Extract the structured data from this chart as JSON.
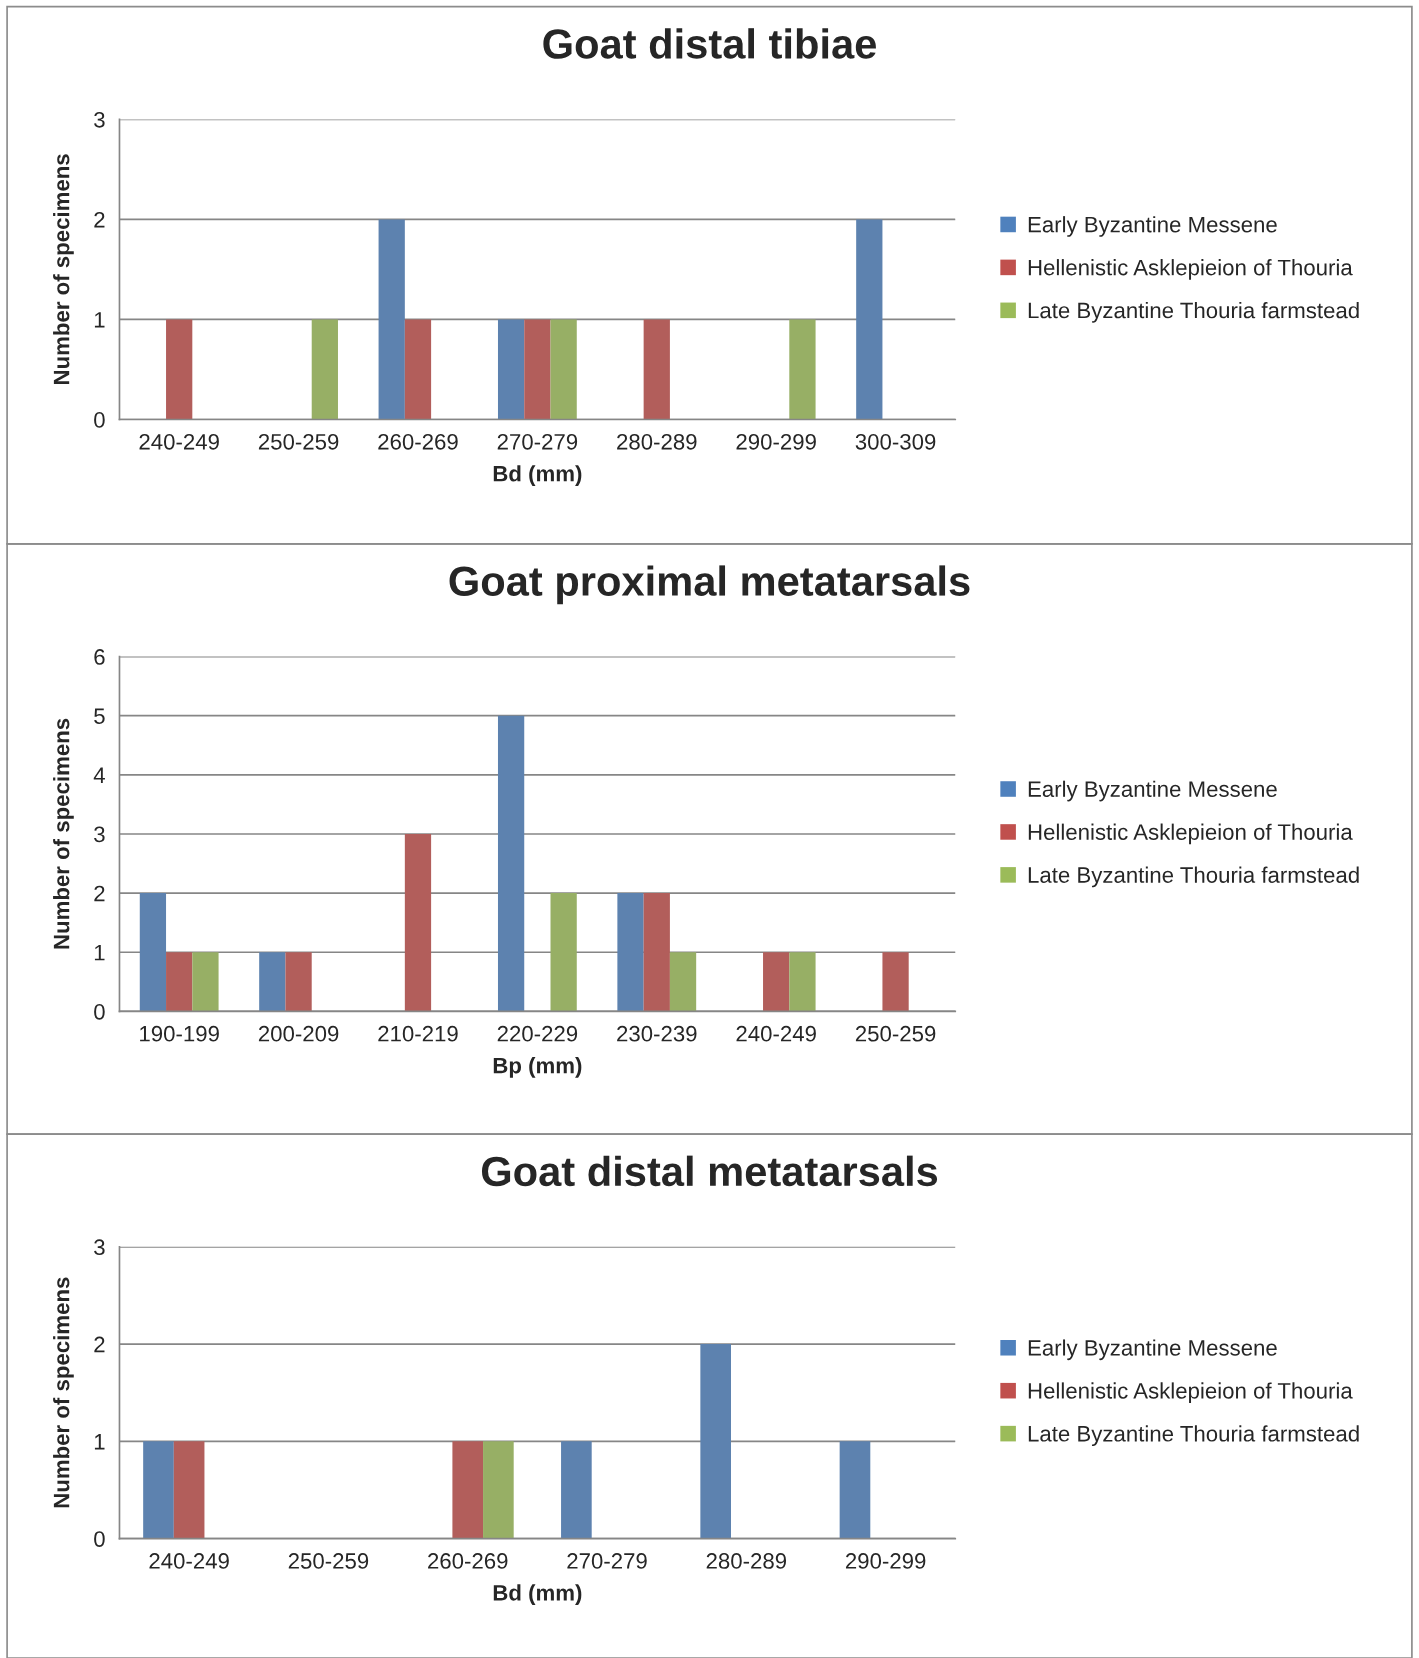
{
  "chart_data": [
    {
      "type": "bar",
      "title": "Goat distal tibiae",
      "xlabel": "Bd (mm)",
      "ylabel": "Number of specimens",
      "categories": [
        "240-249",
        "250-259",
        "260-269",
        "270-279",
        "280-289",
        "290-299",
        "300-309"
      ],
      "series": [
        {
          "name": "Early Byzantine Messene",
          "color": "#4f81bd",
          "values": [
            0,
            0,
            2,
            1,
            0,
            0,
            2
          ]
        },
        {
          "name": "Hellenistic Asklepieion of Thouria",
          "color": "#c0504d",
          "values": [
            1,
            0,
            1,
            1,
            1,
            0,
            0
          ]
        },
        {
          "name": "Late Byzantine Thouria farmstead",
          "color": "#9bbb59",
          "values": [
            0,
            1,
            0,
            1,
            0,
            1,
            0
          ]
        }
      ],
      "ylim": [
        0,
        3
      ],
      "yticks": [
        0,
        1,
        2,
        3
      ],
      "grid": "y",
      "legend": "right"
    },
    {
      "type": "bar",
      "title": "Goat proximal metatarsals",
      "xlabel": "Bp (mm)",
      "ylabel": "Number of specimens",
      "categories": [
        "190-199",
        "200-209",
        "210-219",
        "220-229",
        "230-239",
        "240-249",
        "250-259"
      ],
      "series": [
        {
          "name": "Early Byzantine Messene",
          "color": "#4f81bd",
          "values": [
            2,
            1,
            0,
            5,
            2,
            0,
            0
          ]
        },
        {
          "name": "Hellenistic Asklepieion of Thouria",
          "color": "#c0504d",
          "values": [
            1,
            1,
            3,
            0,
            2,
            1,
            1
          ]
        },
        {
          "name": "Late Byzantine Thouria farmstead",
          "color": "#9bbb59",
          "values": [
            1,
            0,
            0,
            2,
            1,
            1,
            0
          ]
        }
      ],
      "ylim": [
        0,
        6
      ],
      "yticks": [
        0,
        1,
        2,
        3,
        4,
        5,
        6
      ],
      "grid": "y",
      "legend": "right"
    },
    {
      "type": "bar",
      "title": "Goat distal metatarsals",
      "xlabel": "Bd (mm)",
      "ylabel": "Number of specimens",
      "categories": [
        "240-249",
        "250-259",
        "260-269",
        "270-279",
        "280-289",
        "290-299"
      ],
      "series": [
        {
          "name": "Early Byzantine Messene",
          "color": "#4f81bd",
          "values": [
            1,
            0,
            0,
            1,
            2,
            1
          ]
        },
        {
          "name": "Hellenistic Asklepieion of Thouria",
          "color": "#c0504d",
          "values": [
            1,
            0,
            1,
            0,
            0,
            0
          ]
        },
        {
          "name": "Late Byzantine Thouria farmstead",
          "color": "#9bbb59",
          "values": [
            0,
            0,
            1,
            0,
            0,
            0
          ]
        }
      ],
      "ylim": [
        0,
        3
      ],
      "yticks": [
        0,
        1,
        2,
        3
      ],
      "grid": "y",
      "legend": "right"
    }
  ]
}
